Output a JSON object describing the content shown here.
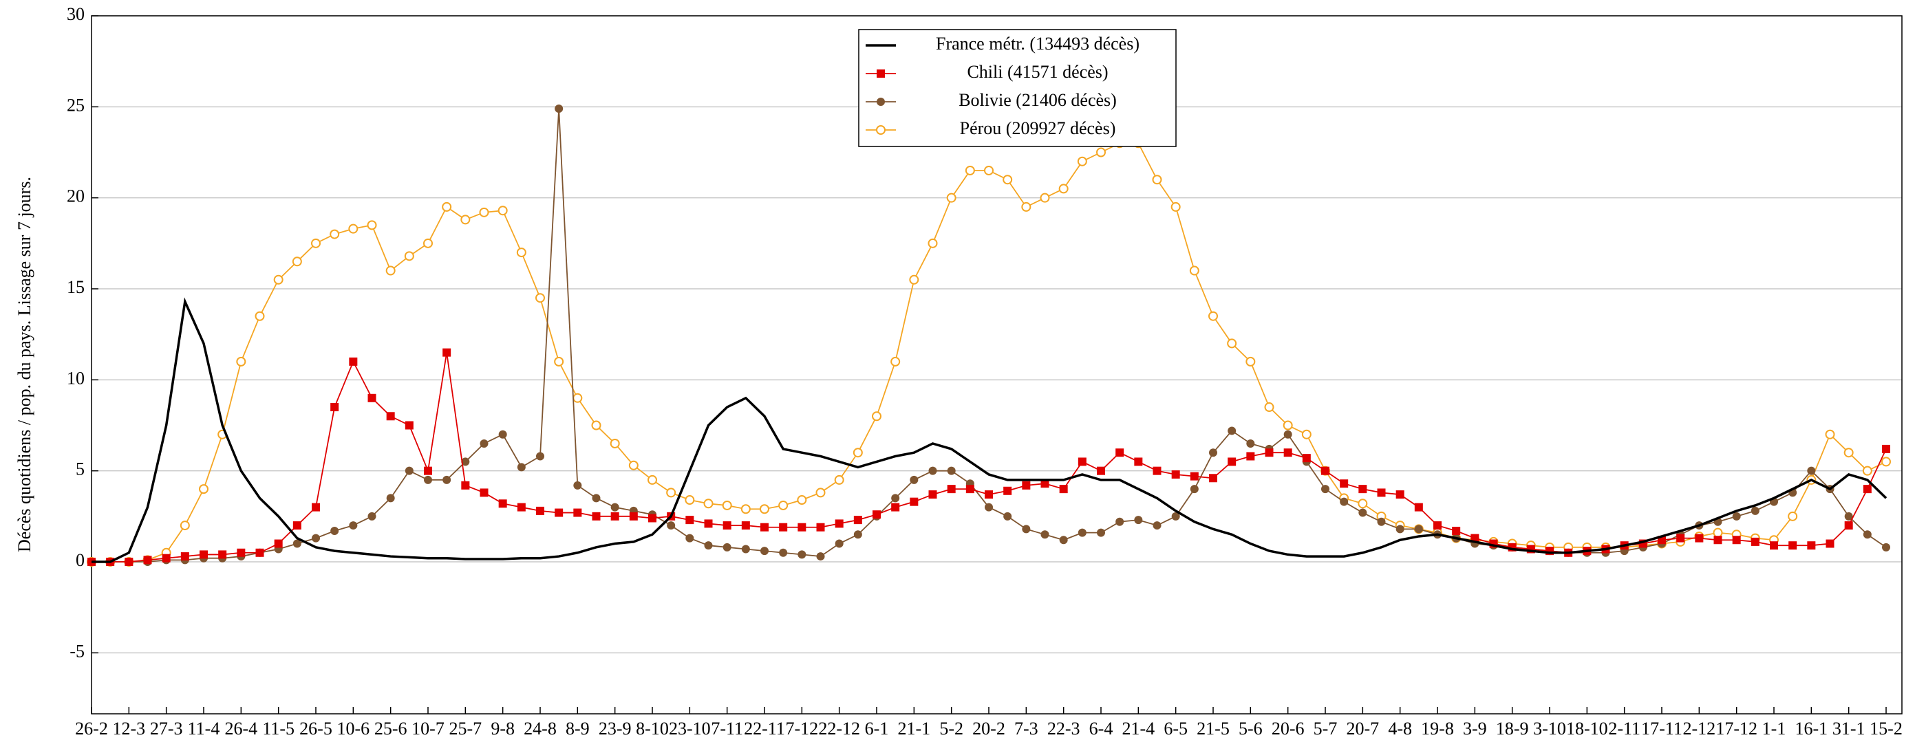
{
  "chart_data": {
    "type": "line",
    "y_label": "Décès quotidiens / pop. du pays. Lissage sur 7 jours.",
    "categories": [
      "26-2",
      null,
      "12-3",
      null,
      "27-3",
      null,
      "11-4",
      null,
      "26-4",
      null,
      "11-5",
      null,
      "26-5",
      null,
      "10-6",
      null,
      "25-6",
      null,
      "10-7",
      null,
      "25-7",
      null,
      "9-8",
      null,
      "24-8",
      null,
      "8-9",
      null,
      "23-9",
      null,
      "8-10",
      null,
      "23-10",
      null,
      "7-11",
      null,
      "22-11",
      null,
      "7-12",
      null,
      "22-12",
      null,
      "6-1",
      null,
      "21-1",
      null,
      "5-2",
      null,
      "20-2",
      null,
      "7-3",
      null,
      "22-3",
      null,
      "6-4",
      null,
      "21-4",
      null,
      "6-5",
      null,
      "21-5",
      null,
      "5-6",
      null,
      "20-6",
      null,
      "5-7",
      null,
      "20-7",
      null,
      "4-8",
      null,
      "19-8",
      null,
      "3-9",
      null,
      "18-9",
      null,
      "3-10",
      null,
      "18-10",
      null,
      "2-11",
      null,
      "17-11",
      null,
      "2-12",
      null,
      "17-12",
      null,
      "1-1",
      null,
      "16-1",
      null,
      "31-1",
      null,
      "15-2"
    ],
    "series": [
      {
        "name": "France métr. (134493 décès)",
        "color": "#000000",
        "marker": "none",
        "values": [
          0,
          0,
          0.5,
          3,
          7.5,
          14.3,
          12,
          7.5,
          5,
          3.5,
          2.5,
          1.3,
          0.8,
          0.6,
          0.5,
          0.4,
          0.3,
          0.25,
          0.2,
          0.2,
          0.15,
          0.15,
          0.15,
          0.2,
          0.2,
          0.3,
          0.5,
          0.8,
          1.0,
          1.1,
          1.5,
          2.5,
          5,
          7.5,
          8.5,
          9,
          8,
          6.2,
          6,
          5.8,
          5.5,
          5.2,
          5.5,
          5.8,
          6,
          6.5,
          6.2,
          5.5,
          4.8,
          4.5,
          4.5,
          4.5,
          4.5,
          4.8,
          4.5,
          4.5,
          4,
          3.5,
          2.8,
          2.2,
          1.8,
          1.5,
          1,
          0.6,
          0.4,
          0.3,
          0.3,
          0.3,
          0.5,
          0.8,
          1.2,
          1.4,
          1.5,
          1.3,
          1.1,
          0.9,
          0.7,
          0.6,
          0.5,
          0.5,
          0.6,
          0.7,
          0.9,
          1.1,
          1.4,
          1.7,
          2.0,
          2.4,
          2.8,
          3.1,
          3.5,
          4,
          4.5,
          4,
          4.8,
          4.5,
          3.5
        ]
      },
      {
        "name": "Chili (41571 décès)",
        "color": "#e00000",
        "marker": "square",
        "values": [
          0,
          0,
          0,
          0.1,
          0.2,
          0.3,
          0.4,
          0.4,
          0.5,
          0.5,
          1.0,
          2.0,
          3.0,
          8.5,
          11,
          9,
          8,
          7.5,
          5.0,
          11.5,
          4.2,
          3.8,
          3.2,
          3,
          2.8,
          2.7,
          2.7,
          2.5,
          2.5,
          2.5,
          2.4,
          2.5,
          2.3,
          2.1,
          2.0,
          2.0,
          1.9,
          1.9,
          1.9,
          1.9,
          2.1,
          2.3,
          2.6,
          3,
          3.3,
          3.7,
          4,
          4,
          3.7,
          3.9,
          4.2,
          4.3,
          4,
          5.5,
          5.0,
          6,
          5.5,
          5,
          4.8,
          4.7,
          4.6,
          5.5,
          5.8,
          6,
          6,
          5.7,
          5,
          4.3,
          4,
          3.8,
          3.7,
          3,
          2,
          1.7,
          1.3,
          1.0,
          0.8,
          0.7,
          0.6,
          0.5,
          0.6,
          0.7,
          0.9,
          1.0,
          1.2,
          1.3,
          1.3,
          1.2,
          1.2,
          1.1,
          0.9,
          0.9,
          0.9,
          1.0,
          2,
          4,
          6.2
        ]
      },
      {
        "name": "Bolivie (21406 décès)",
        "color": "#7f5530",
        "marker": "circle",
        "values": [
          0,
          0,
          0,
          0,
          0.1,
          0.1,
          0.2,
          0.2,
          0.3,
          0.5,
          0.7,
          1.0,
          1.3,
          1.7,
          2.0,
          2.5,
          3.5,
          5.0,
          4.5,
          4.5,
          5.5,
          6.5,
          7.0,
          5.2,
          5.8,
          24.9,
          4.2,
          3.5,
          3.0,
          2.8,
          2.6,
          2.0,
          1.3,
          0.9,
          0.8,
          0.7,
          0.6,
          0.5,
          0.4,
          0.3,
          1.0,
          1.5,
          2.5,
          3.5,
          4.5,
          5.0,
          5.0,
          4.3,
          3.0,
          2.5,
          1.8,
          1.5,
          1.2,
          1.6,
          1.6,
          2.2,
          2.3,
          2,
          2.5,
          4,
          6,
          7.2,
          6.5,
          6.2,
          7,
          5.5,
          4,
          3.3,
          2.7,
          2.2,
          1.8,
          1.8,
          1.5,
          1.3,
          1.0,
          0.9,
          0.8,
          0.7,
          0.6,
          0.5,
          0.5,
          0.5,
          0.6,
          0.8,
          1.0,
          1.5,
          2.0,
          2.2,
          2.5,
          2.8,
          3.3,
          3.8,
          5,
          4,
          2.5,
          1.5,
          0.8
        ]
      },
      {
        "name": "Pérou (209927 décès)",
        "color": "#f5a623",
        "marker": "open-circle",
        "values": [
          0,
          0,
          0,
          0.1,
          0.5,
          2.0,
          4.0,
          7.0,
          11.0,
          13.5,
          15.5,
          16.5,
          17.5,
          18,
          18.3,
          18.5,
          16.0,
          16.8,
          17.5,
          19.5,
          18.8,
          19.2,
          19.3,
          17,
          14.5,
          11,
          9,
          7.5,
          6.5,
          5.3,
          4.5,
          3.8,
          3.4,
          3.2,
          3.1,
          2.9,
          2.9,
          3.1,
          3.4,
          3.8,
          4.5,
          6,
          8,
          11,
          15.5,
          17.5,
          20,
          21.5,
          21.5,
          21,
          19.5,
          20,
          20.5,
          22,
          22.5,
          23,
          23,
          21,
          19.5,
          16,
          13.5,
          12,
          11,
          8.5,
          7.5,
          7,
          5,
          3.5,
          3.2,
          2.5,
          2.0,
          1.8,
          1.6,
          1.3,
          1.2,
          1.1,
          1.0,
          0.9,
          0.8,
          0.8,
          0.8,
          0.8,
          0.8,
          0.9,
          1.0,
          1.1,
          1.4,
          1.6,
          1.5,
          1.3,
          1.2,
          2.5,
          4.5,
          7,
          6,
          5,
          5.5
        ]
      }
    ],
    "ylim": [
      -8.35,
      30
    ],
    "yticks": [
      -5,
      0,
      5,
      10,
      15,
      20,
      25,
      30
    ],
    "grid": true,
    "legend": "top"
  }
}
